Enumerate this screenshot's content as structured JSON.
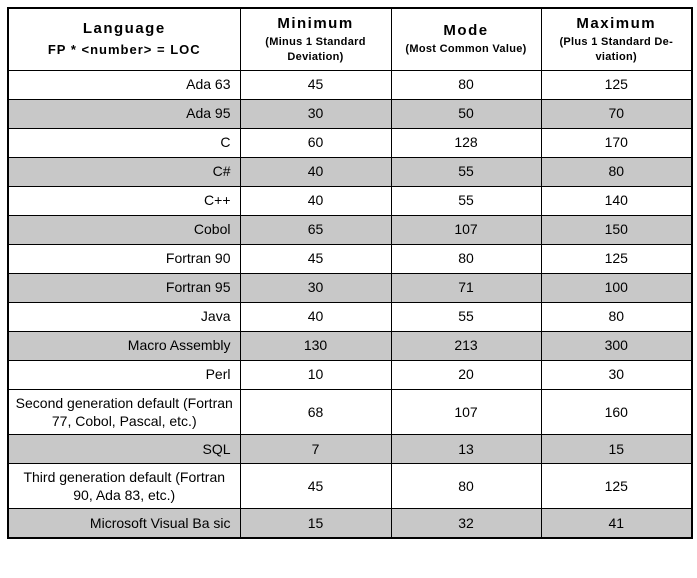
{
  "table": {
    "header": {
      "language_title": "Language",
      "language_subtitle": "FP * <number> = LOC",
      "columns": [
        {
          "title": "Minimum",
          "subtitle": "(Minus 1 Standard Deviation)"
        },
        {
          "title": "Mode",
          "subtitle": "(Most Common Value)"
        },
        {
          "title": "Maximum",
          "subtitle": "(Plus 1 Standard De-viation)"
        }
      ]
    },
    "rows": [
      {
        "language": "Ada 63",
        "min": "45",
        "mode": "80",
        "max": "125",
        "shaded": false,
        "align": "right"
      },
      {
        "language": "Ada 95",
        "min": "30",
        "mode": "50",
        "max": "70",
        "shaded": true,
        "align": "right"
      },
      {
        "language": "C",
        "min": "60",
        "mode": "128",
        "max": "170",
        "shaded": false,
        "align": "right"
      },
      {
        "language": "C#",
        "min": "40",
        "mode": "55",
        "max": "80",
        "shaded": true,
        "align": "right"
      },
      {
        "language": "C++",
        "min": "40",
        "mode": "55",
        "max": "140",
        "shaded": false,
        "align": "right"
      },
      {
        "language": "Cobol",
        "min": "65",
        "mode": "107",
        "max": "150",
        "shaded": true,
        "align": "right"
      },
      {
        "language": "Fortran 90",
        "min": "45",
        "mode": "80",
        "max": "125",
        "shaded": false,
        "align": "right"
      },
      {
        "language": "Fortran 95",
        "min": "30",
        "mode": "71",
        "max": "100",
        "shaded": true,
        "align": "right"
      },
      {
        "language": "Java",
        "min": "40",
        "mode": "55",
        "max": "80",
        "shaded": false,
        "align": "right"
      },
      {
        "language": "Macro Assembly",
        "min": "130",
        "mode": "213",
        "max": "300",
        "shaded": true,
        "align": "right"
      },
      {
        "language": "Perl",
        "min": "10",
        "mode": "20",
        "max": "30",
        "shaded": false,
        "align": "right"
      },
      {
        "language": "Second generation default (Fortran 77, Cobol, Pascal, etc.)",
        "min": "68",
        "mode": "107",
        "max": "160",
        "shaded": false,
        "align": "center"
      },
      {
        "language": "SQL",
        "min": "7",
        "mode": "13",
        "max": "15",
        "shaded": true,
        "align": "right"
      },
      {
        "language": "Third generation default (Fortran 90, Ada 83, etc.)",
        "min": "45",
        "mode": "80",
        "max": "125",
        "shaded": false,
        "align": "center"
      },
      {
        "language": "Microsoft Visual Ba sic",
        "min": "15",
        "mode": "32",
        "max": "41",
        "shaded": true,
        "align": "right"
      }
    ]
  },
  "colors": {
    "shaded_row": "#c8c8c8",
    "border": "#000000",
    "text": "#000000",
    "background": "#ffffff"
  }
}
